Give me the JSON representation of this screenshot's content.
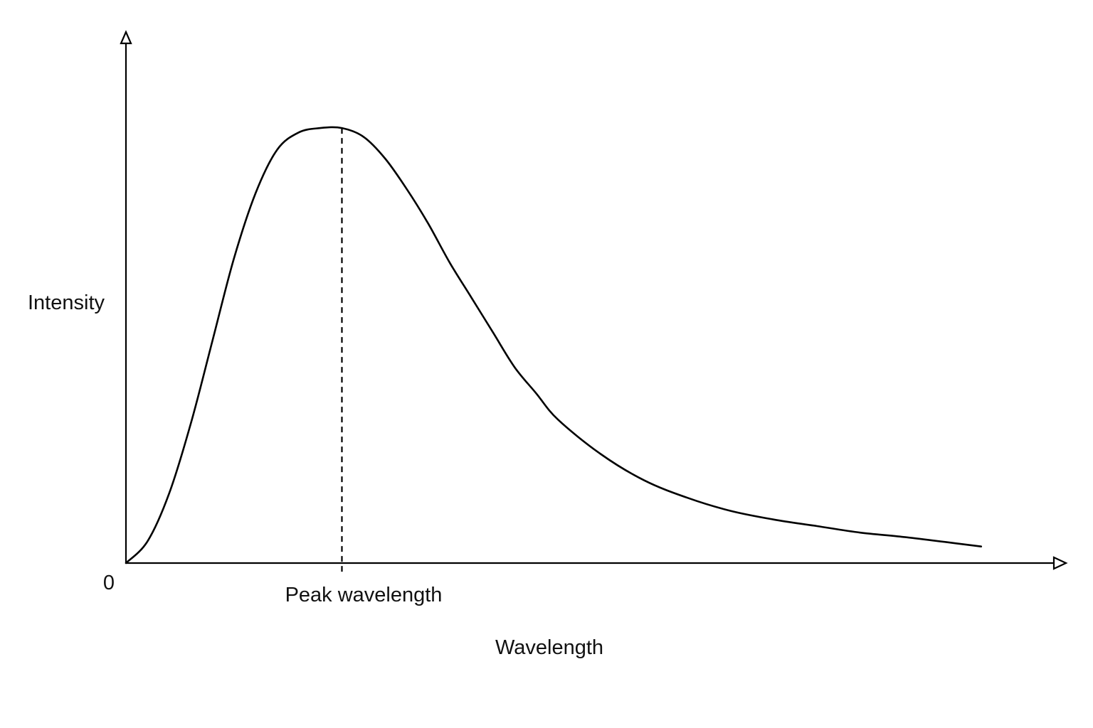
{
  "chart_data": {
    "type": "line",
    "title": "",
    "xlabel": "Wavelength",
    "ylabel": "Intensity",
    "origin_label": "0",
    "annotations": [
      {
        "text": "Peak wavelength",
        "x": 1.0
      }
    ],
    "xlim": [
      0,
      4.3
    ],
    "ylim": [
      0,
      1.18
    ],
    "grid": false,
    "legend": "none",
    "series": [
      {
        "x": [
          0,
          0.1,
          0.2,
          0.3,
          0.4,
          0.5,
          0.6,
          0.7,
          0.8,
          0.9,
          1.0,
          1.1,
          1.2,
          1.3,
          1.4,
          1.5,
          1.6,
          1.7,
          1.8,
          1.9,
          2.0,
          2.2,
          2.4,
          2.6,
          2.8,
          3.0,
          3.2,
          3.4,
          3.6,
          3.8,
          3.96
        ],
        "y": [
          0,
          0.05,
          0.16,
          0.32,
          0.51,
          0.7,
          0.85,
          0.95,
          0.99,
          1.0,
          1.0,
          0.98,
          0.93,
          0.86,
          0.78,
          0.69,
          0.61,
          0.53,
          0.45,
          0.39,
          0.33,
          0.25,
          0.19,
          0.15,
          0.12,
          0.1,
          0.085,
          0.07,
          0.06,
          0.048,
          0.038
        ]
      }
    ]
  },
  "colors": {
    "line": "#000000",
    "background": "#ffffff"
  }
}
